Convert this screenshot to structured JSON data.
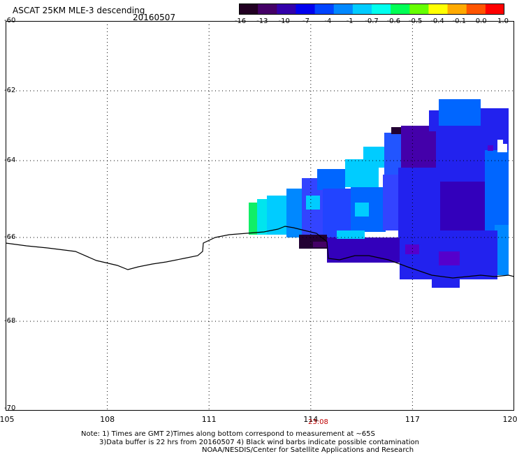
{
  "header": {
    "title": "ASCAT 25KM MLE-3 descending",
    "date": "20160507"
  },
  "colorbar": {
    "labels": [
      "-16",
      "-13",
      "-10",
      "-7",
      "-4",
      "-1",
      "-0.7",
      "-0.6",
      "-0.5",
      "-0.4",
      "-0.1",
      "0.0",
      "1.0"
    ],
    "colors": [
      "#220022",
      "#440066",
      "#3300aa",
      "#0000ee",
      "#0044ff",
      "#0088ff",
      "#00ccff",
      "#00ffee",
      "#00ff55",
      "#66ff00",
      "#ffff00",
      "#ffaa00",
      "#ff5500",
      "#ff0000"
    ]
  },
  "map": {
    "lat_labels": [
      "-60",
      "-62",
      "-64",
      "-66",
      "-68",
      "-70"
    ],
    "lon_labels": [
      "105",
      "108",
      "111",
      "114",
      "117",
      "120"
    ],
    "lon_range": [
      105,
      120
    ],
    "lat_range": [
      -70,
      -60
    ],
    "time_label": "23:08",
    "grid": "dotted",
    "coastline_color": "#000000",
    "data_colors": [
      "#3344ff",
      "#2222ee",
      "#4400aa",
      "#0066ff",
      "#00ccff",
      "#00e5ee",
      "#11ee66",
      "#5500cc",
      "#220033",
      "#ffffff"
    ]
  },
  "notes": {
    "line1": "Note: 1) Times are GMT 2)Times along bottom correspond to measurement at ~65S",
    "line2": "3)Data buffer is 22 hrs from 20160507 4) Black wind barbs indicate possible contamination",
    "line3": "NOAA/NESDIS/Center for Satellite Applications and Research"
  }
}
